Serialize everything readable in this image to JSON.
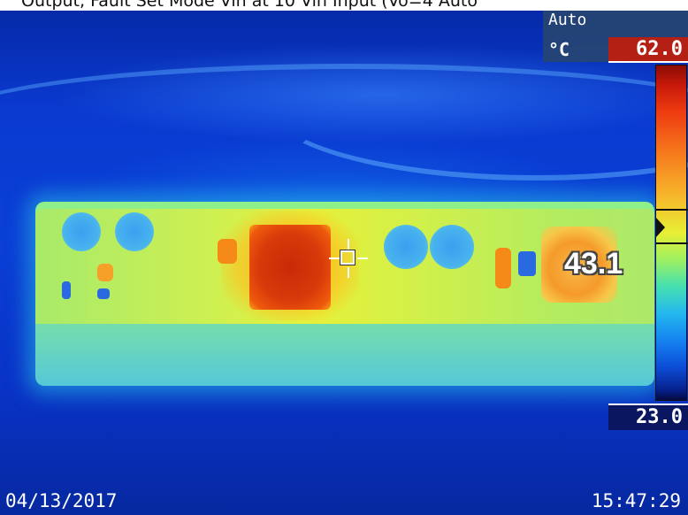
{
  "caption": {
    "text": "Output, Fault Set Mode Vin at 10 Vin Input (Vo=4 Auto"
  },
  "overlay": {
    "range_mode": "Auto",
    "unit": "°C",
    "max_temp": "62.0",
    "min_temp": "23.0",
    "spot_temp": "43.1",
    "date": "04/13/2017",
    "time": "15:47:29"
  },
  "palette": {
    "hot": "#c82a08",
    "warm": "#f58a18",
    "mid": "#e6f03a",
    "cool": "#24b8ee",
    "cold": "#0a2db0"
  }
}
